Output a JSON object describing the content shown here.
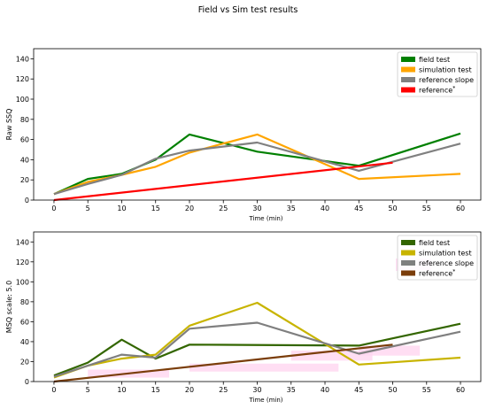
{
  "figure": {
    "title": "Field vs Sim test results"
  },
  "chart_data": [
    {
      "type": "line",
      "title": "",
      "xlabel": "Time (min)",
      "ylabel": "Raw SSQ",
      "xlim": [
        -3,
        63
      ],
      "ylim": [
        0,
        150
      ],
      "xticks": [
        0,
        5,
        10,
        15,
        20,
        25,
        30,
        35,
        40,
        45,
        50,
        55,
        60
      ],
      "yticks": [
        0,
        20,
        40,
        60,
        80,
        100,
        120,
        140
      ],
      "grid": false,
      "legend": "top-right",
      "series": [
        {
          "name": "field test",
          "color": "#008000",
          "x": [
            0,
            5,
            10,
            15,
            20,
            30,
            45,
            60
          ],
          "y": [
            6,
            21,
            26,
            40,
            65,
            48,
            34,
            66
          ]
        },
        {
          "name": "simulation test",
          "color": "#ffa500",
          "x": [
            0,
            5,
            10,
            15,
            20,
            30,
            45,
            60
          ],
          "y": [
            6,
            18,
            25,
            33,
            47,
            65,
            21,
            26
          ]
        },
        {
          "name": "reference slope",
          "color": "#808080",
          "x": [
            0,
            5,
            10,
            15,
            20,
            30,
            45,
            60
          ],
          "y": [
            6,
            16,
            25,
            41,
            49,
            57,
            29,
            56
          ]
        },
        {
          "name": "reference",
          "name_suffix": "*",
          "color": "#ff0000",
          "x": [
            0,
            50
          ],
          "y": [
            0,
            37
          ]
        }
      ]
    },
    {
      "type": "line",
      "title": "",
      "xlabel": "Time (min)",
      "ylabel": "MSQ scale: 5.0",
      "xlim": [
        -3,
        63
      ],
      "ylim": [
        0,
        150
      ],
      "xticks": [
        0,
        5,
        10,
        15,
        20,
        25,
        30,
        35,
        40,
        45,
        50,
        55,
        60
      ],
      "yticks": [
        0,
        20,
        40,
        60,
        80,
        100,
        120,
        140
      ],
      "grid": false,
      "legend": "top-right",
      "series": [
        {
          "name": "field test",
          "color": "#336600",
          "x": [
            0,
            5,
            10,
            15,
            20,
            45,
            60
          ],
          "y": [
            6,
            19,
            42,
            23,
            37,
            36,
            58
          ]
        },
        {
          "name": "simulation test",
          "color": "#c8b400",
          "x": [
            0,
            5,
            10,
            15,
            20,
            30,
            45,
            60
          ],
          "y": [
            4,
            16,
            23,
            27,
            56,
            79,
            17,
            24
          ]
        },
        {
          "name": "reference slope",
          "color": "#7f7f7f",
          "x": [
            0,
            10,
            15,
            20,
            30,
            45,
            60
          ],
          "y": [
            5,
            27,
            24,
            53,
            59,
            28,
            50
          ]
        },
        {
          "name": "reference",
          "name_suffix": "*",
          "color": "#7a3d0a",
          "x": [
            0,
            50
          ],
          "y": [
            0,
            37
          ]
        }
      ]
    }
  ]
}
